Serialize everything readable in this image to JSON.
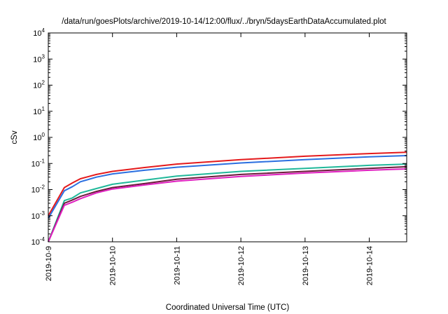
{
  "chart_data": {
    "type": "line",
    "title": "/data/run/goesPlots/archive/2019-10-14/12:00/flux/../bryn/5daysEarthDataAccumulated.plot",
    "xlabel": "Coordinated Universal Time (UTC)",
    "ylabel": "cSv",
    "y_scale": "log",
    "ylim": [
      0.0001,
      10000
    ],
    "y_ticks": [
      {
        "base": "10",
        "exp": "4"
      },
      {
        "base": "10",
        "exp": "3"
      },
      {
        "base": "10",
        "exp": "2"
      },
      {
        "base": "10",
        "exp": "1"
      },
      {
        "base": "10",
        "exp": "0"
      },
      {
        "base": "10",
        "exp": "-1"
      },
      {
        "base": "10",
        "exp": "-2"
      },
      {
        "base": "10",
        "exp": "-3"
      },
      {
        "base": "10",
        "exp": "-4"
      }
    ],
    "xlim": [
      "2019-10-09 00:00",
      "2019-10-14 14:00"
    ],
    "x_ticks": [
      "2019-10-9",
      "2019-10-10",
      "2019-10-11",
      "2019-10-12",
      "2019-10-13",
      "2019-10-14"
    ],
    "x": [
      "2019-10-09 00:00",
      "2019-10-09 06:00",
      "2019-10-09 09:00",
      "2019-10-09 12:00",
      "2019-10-09 18:00",
      "2019-10-10 00:00",
      "2019-10-10 12:00",
      "2019-10-11 00:00",
      "2019-10-12 00:00",
      "2019-10-13 00:00",
      "2019-10-14 00:00",
      "2019-10-14 14:00"
    ],
    "grid": false,
    "legend": "none",
    "series": [
      {
        "color": "#e41a1c",
        "values": [
          0.001,
          0.012,
          0.018,
          0.026,
          0.038,
          0.05,
          0.07,
          0.095,
          0.14,
          0.19,
          0.24,
          0.27
        ]
      },
      {
        "color": "#2b6fe0",
        "values": [
          0.0008,
          0.009,
          0.013,
          0.02,
          0.03,
          0.04,
          0.055,
          0.072,
          0.105,
          0.14,
          0.18,
          0.2
        ]
      },
      {
        "color": "#20b89a",
        "values": [
          0.0001,
          0.0038,
          0.0048,
          0.0075,
          0.011,
          0.016,
          0.023,
          0.033,
          0.05,
          0.065,
          0.085,
          0.095
        ]
      },
      {
        "color": "#6b1a3a",
        "values": [
          0.0001,
          0.003,
          0.004,
          0.0055,
          0.0085,
          0.012,
          0.017,
          0.025,
          0.038,
          0.05,
          0.065,
          0.075
        ]
      },
      {
        "color": "#e020c0",
        "values": [
          0.0001,
          0.0025,
          0.0033,
          0.0045,
          0.0075,
          0.0105,
          0.015,
          0.021,
          0.032,
          0.043,
          0.055,
          0.062
        ]
      }
    ]
  }
}
